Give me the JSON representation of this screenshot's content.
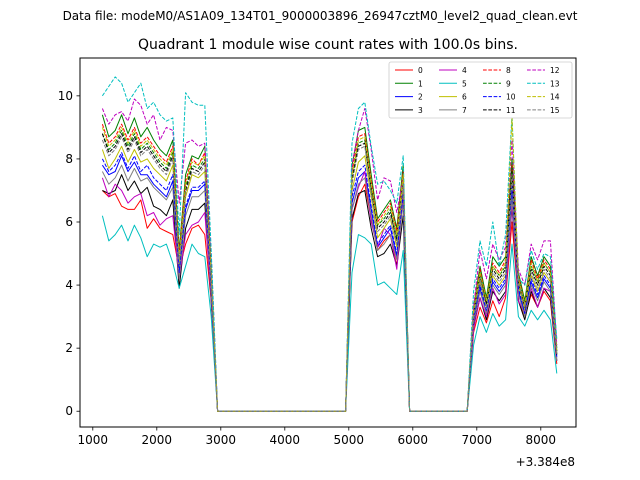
{
  "figure": {
    "suptitle": "Data file: modeM0/AS1A09_134T01_9000003896_26947cztM0_level2_quad_clean.evt"
  },
  "chart_data": {
    "type": "line",
    "title": "Quadrant 1 module wise count rates with 100.0s bins.",
    "xlabel": "",
    "ylabel": "",
    "x_offset_label": "+3.384e8",
    "xlim": [
      800,
      8550
    ],
    "ylim": [
      -0.5,
      11.2
    ],
    "xticks": [
      1000,
      2000,
      3000,
      4000,
      5000,
      6000,
      7000,
      8000
    ],
    "yticks": [
      0,
      2,
      4,
      6,
      8,
      10
    ],
    "grid": false,
    "legend": {
      "placement": "top-right",
      "ncol": 4
    },
    "x": [
      1150,
      1250,
      1350,
      1450,
      1550,
      1650,
      1750,
      1850,
      1950,
      2050,
      2150,
      2250,
      2350,
      2450,
      2550,
      2650,
      2750,
      2850,
      2950,
      3050,
      4950,
      5050,
      5150,
      5250,
      5350,
      5450,
      5550,
      5650,
      5750,
      5850,
      5950,
      6050,
      6850,
      6950,
      7050,
      7150,
      7250,
      7350,
      7450,
      7550,
      7650,
      7750,
      7850,
      7950,
      8050,
      8150,
      8250
    ],
    "series": [
      {
        "name": "0",
        "color": "#ff0000",
        "dash": "solid",
        "values": [
          7.0,
          6.8,
          6.9,
          6.5,
          6.4,
          6.4,
          6.7,
          5.8,
          6.1,
          5.8,
          5.7,
          5.6,
          4.5,
          5.3,
          5.8,
          5.9,
          5.6,
          3.5,
          0.0,
          0.0,
          0.0,
          6.0,
          6.8,
          7.2,
          6.1,
          5.1,
          5.4,
          5.6,
          4.6,
          6.9,
          0.0,
          0.0,
          0.0,
          2.5,
          3.3,
          2.8,
          3.5,
          3.0,
          3.6,
          6.0,
          3.5,
          3.0,
          3.7,
          3.3,
          3.8,
          3.5,
          1.5
        ]
      },
      {
        "name": "1",
        "color": "#008000",
        "dash": "solid",
        "values": [
          9.4,
          8.7,
          8.9,
          9.4,
          8.8,
          9.3,
          8.7,
          9.0,
          8.6,
          8.3,
          8.1,
          8.6,
          5.1,
          7.5,
          8.1,
          8.0,
          8.4,
          4.5,
          0.0,
          0.0,
          0.0,
          7.8,
          8.9,
          9.0,
          7.5,
          6.1,
          6.4,
          6.7,
          5.8,
          7.8,
          0.0,
          0.0,
          0.0,
          3.3,
          4.6,
          3.6,
          4.9,
          4.6,
          4.9,
          8.0,
          4.4,
          3.5,
          4.9,
          4.3,
          4.9,
          4.6,
          2.0
        ]
      },
      {
        "name": "2",
        "color": "#0000ff",
        "dash": "solid",
        "values": [
          7.8,
          7.5,
          7.6,
          8.1,
          7.6,
          7.9,
          7.5,
          7.5,
          7.2,
          7.0,
          6.8,
          7.3,
          4.3,
          6.4,
          7.0,
          7.0,
          7.2,
          3.8,
          0.0,
          0.0,
          0.0,
          6.6,
          7.4,
          7.6,
          6.4,
          5.2,
          5.5,
          5.8,
          4.9,
          6.7,
          0.0,
          0.0,
          0.0,
          2.9,
          3.9,
          3.1,
          4.1,
          3.8,
          4.1,
          7.0,
          3.8,
          3.1,
          4.1,
          3.6,
          4.2,
          3.9,
          1.7
        ]
      },
      {
        "name": "3",
        "color": "#000000",
        "dash": "solid",
        "values": [
          7.0,
          6.9,
          7.0,
          7.5,
          7.0,
          7.3,
          6.9,
          7.1,
          6.5,
          6.4,
          6.2,
          6.7,
          3.9,
          5.8,
          6.4,
          6.4,
          6.6,
          3.5,
          0.0,
          0.0,
          0.0,
          6.1,
          6.9,
          7.0,
          5.8,
          4.9,
          5.0,
          5.3,
          4.6,
          6.2,
          0.0,
          0.0,
          0.0,
          2.7,
          3.6,
          2.9,
          3.8,
          3.5,
          3.8,
          6.5,
          3.5,
          2.9,
          3.8,
          3.3,
          3.9,
          3.6,
          1.6
        ]
      },
      {
        "name": "4",
        "color": "#bf00bf",
        "dash": "solid",
        "values": [
          7.4,
          6.8,
          7.2,
          7.0,
          6.6,
          6.8,
          6.9,
          6.2,
          6.3,
          5.9,
          6.1,
          6.2,
          4.2,
          5.6,
          5.9,
          6.0,
          6.3,
          3.6,
          0.0,
          0.0,
          0.0,
          6.4,
          7.1,
          7.6,
          6.0,
          5.2,
          5.8,
          5.6,
          4.5,
          6.8,
          0.0,
          0.0,
          0.0,
          2.6,
          3.6,
          3.0,
          3.9,
          3.4,
          3.7,
          6.6,
          3.5,
          3.1,
          3.9,
          3.3,
          3.9,
          3.8,
          1.6
        ]
      },
      {
        "name": "5",
        "color": "#00bfbf",
        "dash": "solid",
        "values": [
          6.2,
          5.4,
          5.6,
          5.9,
          5.4,
          5.9,
          5.5,
          4.9,
          5.3,
          5.2,
          5.3,
          4.7,
          3.9,
          4.6,
          5.3,
          5.0,
          4.9,
          3.0,
          0.0,
          0.0,
          0.0,
          4.4,
          5.6,
          5.5,
          5.3,
          4.0,
          4.1,
          3.9,
          3.7,
          5.1,
          0.0,
          0.0,
          0.0,
          2.1,
          3.0,
          2.5,
          3.1,
          2.7,
          2.9,
          5.3,
          3.0,
          2.7,
          3.2,
          2.9,
          3.2,
          2.9,
          1.2
        ]
      },
      {
        "name": "6",
        "color": "#bfbf00",
        "dash": "solid",
        "values": [
          8.3,
          7.7,
          8.0,
          8.4,
          7.9,
          8.3,
          7.9,
          8.0,
          7.7,
          7.5,
          7.3,
          7.8,
          4.6,
          6.8,
          7.5,
          7.4,
          7.6,
          4.0,
          0.0,
          0.0,
          0.0,
          7.0,
          7.9,
          8.1,
          6.8,
          5.5,
          5.8,
          6.1,
          5.2,
          7.1,
          0.0,
          0.0,
          0.0,
          3.0,
          4.1,
          3.3,
          4.3,
          4.0,
          4.3,
          7.4,
          4.0,
          3.2,
          4.3,
          3.8,
          4.4,
          4.1,
          1.8
        ]
      },
      {
        "name": "7",
        "color": "#808080",
        "dash": "solid",
        "values": [
          7.6,
          7.2,
          7.4,
          7.8,
          7.3,
          7.7,
          7.3,
          7.4,
          7.1,
          6.9,
          6.7,
          7.1,
          4.2,
          6.2,
          6.8,
          6.8,
          7.0,
          3.7,
          0.0,
          0.0,
          0.0,
          6.4,
          7.2,
          7.4,
          6.2,
          5.1,
          5.3,
          5.6,
          4.8,
          6.6,
          0.0,
          0.0,
          0.0,
          2.8,
          3.8,
          3.1,
          4.0,
          3.7,
          4.0,
          6.8,
          3.7,
          3.0,
          4.0,
          3.5,
          4.1,
          3.8,
          1.6
        ]
      },
      {
        "name": "8",
        "color": "#ff0000",
        "dash": "dashed",
        "values": [
          9.1,
          8.5,
          8.7,
          9.1,
          8.6,
          9.0,
          8.5,
          8.7,
          8.4,
          8.1,
          7.9,
          8.4,
          5.0,
          7.3,
          8.0,
          7.8,
          8.2,
          4.3,
          0.0,
          0.0,
          0.0,
          7.6,
          8.7,
          8.8,
          7.3,
          6.0,
          6.3,
          6.6,
          5.7,
          7.6,
          0.0,
          0.0,
          0.0,
          3.2,
          4.5,
          3.5,
          4.7,
          4.4,
          4.8,
          7.8,
          4.3,
          3.4,
          4.8,
          4.2,
          4.8,
          4.5,
          1.9
        ]
      },
      {
        "name": "9",
        "color": "#008000",
        "dash": "dashed",
        "values": [
          8.8,
          8.3,
          8.5,
          8.9,
          8.4,
          8.8,
          8.3,
          8.5,
          8.2,
          7.9,
          7.7,
          8.2,
          4.9,
          7.1,
          7.8,
          7.7,
          8.0,
          4.2,
          0.0,
          0.0,
          0.0,
          7.4,
          8.5,
          8.6,
          7.1,
          5.9,
          6.1,
          6.4,
          5.5,
          7.4,
          0.0,
          0.0,
          0.0,
          3.1,
          4.4,
          3.4,
          4.6,
          4.3,
          4.6,
          7.7,
          4.2,
          3.4,
          4.6,
          4.1,
          4.7,
          4.4,
          1.9
        ]
      },
      {
        "name": "10",
        "color": "#0000ff",
        "dash": "dashed",
        "values": [
          8.0,
          7.6,
          7.8,
          8.2,
          7.7,
          8.1,
          7.6,
          7.8,
          7.4,
          7.2,
          7.0,
          7.5,
          4.4,
          6.5,
          7.1,
          7.1,
          7.3,
          3.9,
          0.0,
          0.0,
          0.0,
          6.8,
          7.6,
          7.8,
          6.5,
          5.3,
          5.6,
          5.9,
          5.0,
          6.9,
          0.0,
          0.0,
          0.0,
          2.9,
          4.0,
          3.2,
          4.2,
          3.9,
          4.2,
          7.2,
          3.9,
          3.1,
          4.2,
          3.7,
          4.3,
          4.0,
          1.7
        ]
      },
      {
        "name": "11",
        "color": "#000000",
        "dash": "dashed",
        "values": [
          8.8,
          8.2,
          8.4,
          8.8,
          8.3,
          8.7,
          8.2,
          8.4,
          8.1,
          7.8,
          7.6,
          8.1,
          4.8,
          7.0,
          7.7,
          7.6,
          7.9,
          4.2,
          0.0,
          0.0,
          0.0,
          7.3,
          8.4,
          8.5,
          7.0,
          5.8,
          6.0,
          6.3,
          5.4,
          7.3,
          0.0,
          0.0,
          0.0,
          3.1,
          4.3,
          3.4,
          4.5,
          4.2,
          4.5,
          7.6,
          4.1,
          3.3,
          4.5,
          4.0,
          4.6,
          4.3,
          1.8
        ]
      },
      {
        "name": "12",
        "color": "#bf00bf",
        "dash": "dashed",
        "values": [
          9.6,
          9.1,
          9.4,
          9.5,
          9.2,
          9.9,
          9.7,
          9.1,
          9.4,
          8.6,
          9.0,
          8.9,
          6.6,
          8.5,
          8.6,
          8.4,
          8.5,
          5.0,
          0.0,
          0.0,
          0.0,
          7.8,
          8.9,
          9.6,
          8.3,
          6.7,
          7.4,
          7.3,
          6.3,
          7.4,
          0.0,
          0.0,
          0.0,
          3.3,
          5.1,
          4.2,
          5.3,
          4.8,
          5.2,
          8.6,
          4.5,
          4.0,
          5.3,
          4.8,
          5.4,
          5.4,
          2.1
        ]
      },
      {
        "name": "13",
        "color": "#00bfbf",
        "dash": "dashed",
        "values": [
          10.0,
          10.3,
          10.6,
          10.4,
          9.8,
          10.1,
          10.4,
          9.6,
          9.8,
          9.4,
          9.2,
          9.3,
          5.6,
          10.1,
          9.8,
          9.7,
          9.7,
          5.1,
          0.0,
          0.0,
          0.0,
          8.5,
          9.6,
          9.8,
          8.4,
          7.2,
          7.3,
          7.0,
          6.6,
          8.1,
          0.0,
          0.0,
          0.0,
          3.8,
          5.4,
          4.6,
          6.0,
          4.6,
          5.6,
          9.4,
          4.2,
          4.0,
          5.1,
          4.5,
          5.0,
          4.9,
          2.3
        ]
      },
      {
        "name": "14",
        "color": "#bfbf00",
        "dash": "dashed",
        "values": [
          9.0,
          8.4,
          8.6,
          9.0,
          8.5,
          8.9,
          8.4,
          8.6,
          8.3,
          8.0,
          7.8,
          8.3,
          4.9,
          7.2,
          7.9,
          7.8,
          8.1,
          4.3,
          0.0,
          0.0,
          0.0,
          7.5,
          8.6,
          8.7,
          7.2,
          5.9,
          6.2,
          6.5,
          5.6,
          7.5,
          0.0,
          0.0,
          0.0,
          3.2,
          4.4,
          3.5,
          4.6,
          4.3,
          4.7,
          9.3,
          4.2,
          3.4,
          4.7,
          4.1,
          4.7,
          4.4,
          1.9
        ]
      },
      {
        "name": "15",
        "color": "#808080",
        "dash": "dashed",
        "values": [
          8.6,
          8.1,
          8.3,
          8.7,
          8.2,
          8.6,
          8.1,
          8.3,
          8.0,
          7.7,
          7.5,
          8.0,
          4.7,
          6.9,
          7.6,
          7.5,
          7.8,
          4.1,
          0.0,
          0.0,
          0.0,
          7.2,
          8.3,
          8.4,
          6.9,
          5.7,
          5.9,
          6.2,
          5.3,
          7.2,
          0.0,
          0.0,
          0.0,
          3.0,
          4.2,
          3.3,
          4.4,
          4.1,
          4.4,
          7.5,
          4.1,
          3.3,
          4.4,
          3.9,
          4.5,
          4.2,
          1.8
        ]
      }
    ]
  }
}
